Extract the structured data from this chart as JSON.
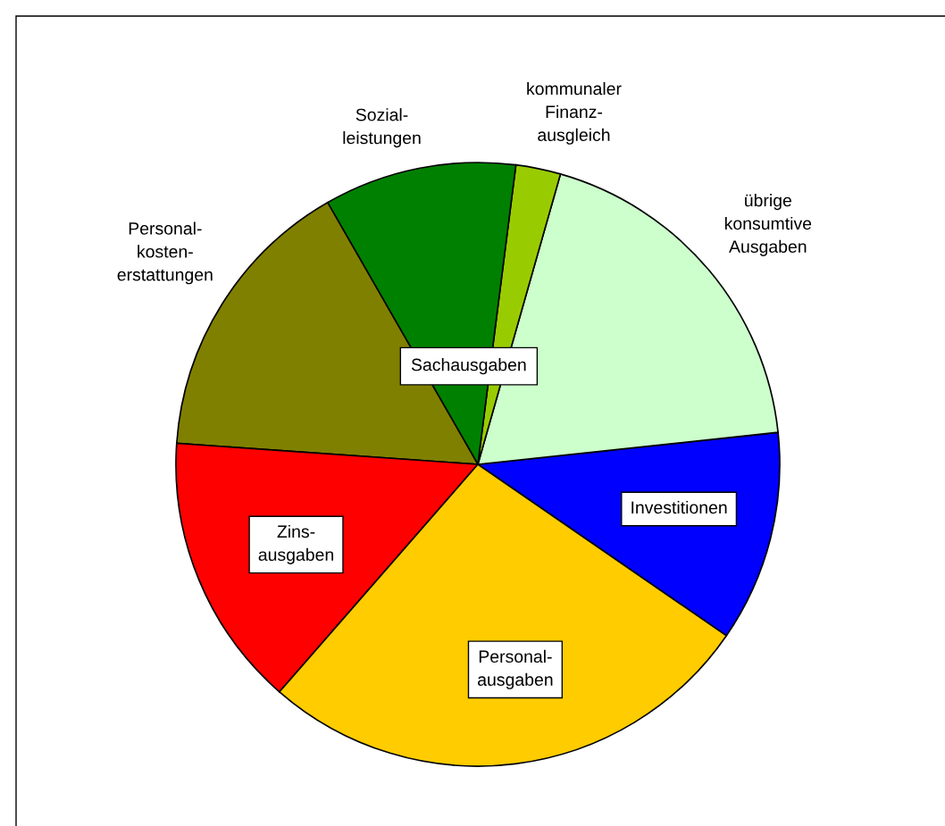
{
  "chart_data": {
    "type": "pie",
    "categories": [
      "Investitionen",
      "übrige\nkonsumtive\nAusgaben",
      "kommunaler\nFinanz-\nausgleich",
      "Sozial-\nleistungen",
      "Personal-\nkosten-\nerstattungen",
      "Zins-\nausgaben",
      "Personal-\nausgaben"
    ],
    "values": [
      11.3,
      18.9,
      2.4,
      10.3,
      15.6,
      14.7,
      26.8
    ],
    "colors": [
      "#0000ff",
      "#ccffcc",
      "#99cc00",
      "#008000",
      "#808000",
      "#ff0000",
      "#ffcc00"
    ],
    "annotations": [
      "Sachausgaben"
    ]
  }
}
